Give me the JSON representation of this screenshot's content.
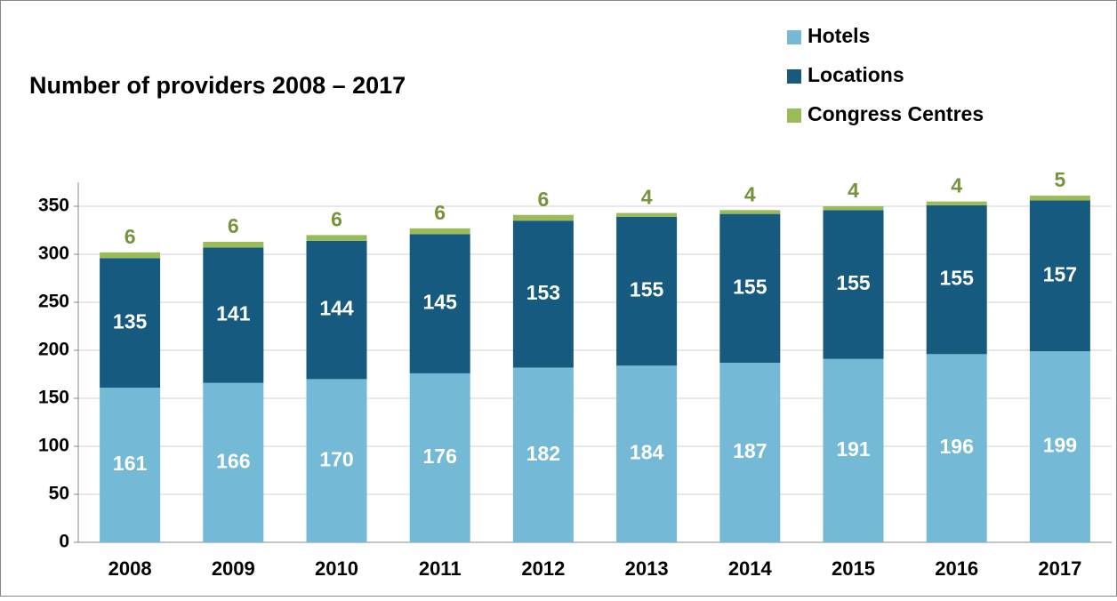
{
  "chart_data": {
    "type": "stacked_bar",
    "title": "Number of providers 2008 – 2017",
    "categories": [
      "2008",
      "2009",
      "2010",
      "2011",
      "2012",
      "2013",
      "2014",
      "2015",
      "2016",
      "2017"
    ],
    "series": [
      {
        "name": "Hotels",
        "color": "#74b9d6",
        "values": [
          161,
          166,
          170,
          176,
          182,
          184,
          187,
          191,
          196,
          199
        ]
      },
      {
        "name": "Locations",
        "color": "#175a80",
        "values": [
          135,
          141,
          144,
          145,
          153,
          155,
          155,
          155,
          155,
          157
        ]
      },
      {
        "name": "Congress Centres",
        "color": "#9bbb59",
        "values": [
          6,
          6,
          6,
          6,
          6,
          4,
          4,
          4,
          4,
          5
        ]
      }
    ],
    "ylim": [
      0,
      375
    ],
    "yticks": [
      0,
      50,
      100,
      150,
      200,
      250,
      300,
      350
    ],
    "grid": true
  }
}
